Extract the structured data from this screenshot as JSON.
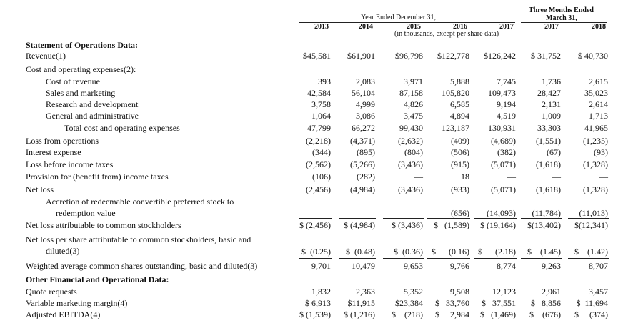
{
  "header": {
    "year_ended": "Year Ended December 31,",
    "three_months": "Three Months Ended",
    "three_months_date": "March 31,",
    "units": "(in thousands, except per share data)",
    "years": [
      "2013",
      "2014",
      "2015",
      "2016",
      "2017",
      "2017",
      "2018"
    ]
  },
  "rows": [
    {
      "label": "Statement of Operations Data:",
      "style": "section",
      "values": []
    },
    {
      "label": "Revenue(1)",
      "style": "normal",
      "values": [
        "$45,581",
        "$61,901",
        "$96,798",
        "$122,778",
        "$126,242",
        "$ 31,752",
        "$ 40,730"
      ]
    },
    {
      "label": "Cost and operating expenses(2):",
      "style": "normal",
      "values": []
    },
    {
      "label": "Cost of revenue",
      "style": "indent",
      "values": [
        "393",
        "2,083",
        "3,971",
        "5,888",
        "7,745",
        "1,736",
        "2,615"
      ]
    },
    {
      "label": "Sales and marketing",
      "style": "indent",
      "values": [
        "42,584",
        "56,104",
        "87,158",
        "105,820",
        "109,473",
        "28,427",
        "35,023"
      ]
    },
    {
      "label": "Research and development",
      "style": "indent",
      "values": [
        "3,758",
        "4,999",
        "4,826",
        "6,585",
        "9,194",
        "2,131",
        "2,614"
      ]
    },
    {
      "label": "General and administrative",
      "style": "indent",
      "values": [
        "1,064",
        "3,086",
        "3,475",
        "4,894",
        "4,519",
        "1,009",
        "1,713"
      ]
    },
    {
      "label": "Total cost and operating expenses",
      "style": "indent2",
      "values": [
        "47,799",
        "66,272",
        "99,430",
        "123,187",
        "130,931",
        "33,303",
        "41,965"
      ]
    },
    {
      "label": "Loss from operations",
      "style": "normal",
      "values": [
        "(2,218)",
        "(4,371)",
        "(2,632)",
        "(409)",
        "(4,689)",
        "(1,551)",
        "(1,235)"
      ]
    },
    {
      "label": "Interest expense",
      "style": "normal",
      "values": [
        "(344)",
        "(895)",
        "(804)",
        "(506)",
        "(382)",
        "(67)",
        "(93)"
      ]
    },
    {
      "label": "Loss before income taxes",
      "style": "normal",
      "values": [
        "(2,562)",
        "(5,266)",
        "(3,436)",
        "(915)",
        "(5,071)",
        "(1,618)",
        "(1,328)"
      ]
    },
    {
      "label": "Provision for (benefit from) income taxes",
      "style": "normal",
      "values": [
        "(106)",
        "(282)",
        "—",
        "18",
        "—",
        "—",
        "—"
      ]
    },
    {
      "label": "Net loss",
      "style": "normal",
      "values": [
        "(2,456)",
        "(4,984)",
        "(3,436)",
        "(933)",
        "(5,071)",
        "(1,618)",
        "(1,328)"
      ]
    },
    {
      "label": "Accretion of redeemable convertible preferred stock to",
      "style": "indent",
      "values": []
    },
    {
      "label": "redemption value",
      "style": "indent2b",
      "values": [
        "—",
        "—",
        "—",
        "(656)",
        "(14,093)",
        "(11,784)",
        "(11,013)"
      ]
    },
    {
      "label": "Net loss attributable to common stockholders",
      "style": "normal",
      "values": [
        "$ (2,456)",
        "$ (4,984)",
        "$ (3,436)",
        "$   (1,589)",
        "$ (19,164)",
        "$(13,402)",
        "$(12,341)"
      ]
    },
    {
      "label": "Net loss per share attributable to common stockholders, basic and",
      "style": "normal",
      "values": []
    },
    {
      "label": "diluted(3)",
      "style": "indent",
      "values": []
    },
    {
      "label": "",
      "style": "normal",
      "values": [
        "$  (0.25)",
        "$  (0.48)",
        "$  (0.36)",
        "$      (0.16)",
        "$      (2.18)",
        "$    (1.45)",
        "$    (1.42)"
      ]
    },
    {
      "label": "Weighted average common shares outstanding, basic and diluted(3)",
      "style": "normal",
      "values": [
        "9,701",
        "10,479",
        "9,653",
        "9,766",
        "8,774",
        "9,263",
        "8,707"
      ]
    },
    {
      "label": "Other Financial and Operational Data:",
      "style": "section",
      "values": []
    },
    {
      "label": "Quote requests",
      "style": "normal",
      "values": [
        "1,832",
        "2,363",
        "5,352",
        "9,508",
        "12,123",
        "2,961",
        "3,457"
      ]
    },
    {
      "label": "Variable marketing margin(4)",
      "style": "normal",
      "values": [
        "$ 6,913",
        "$11,915",
        "$23,384",
        "$   33,760",
        "$   37,551",
        "$   8,856",
        "$  11,694"
      ]
    },
    {
      "label": "Adjusted EBITDA(4)",
      "style": "normal",
      "values": [
        "$ (1,539)",
        "$ (1,216)",
        "$    (218)",
        "$     2,984",
        "$   (1,469)",
        "$    (676)",
        "$     (374)"
      ]
    }
  ]
}
